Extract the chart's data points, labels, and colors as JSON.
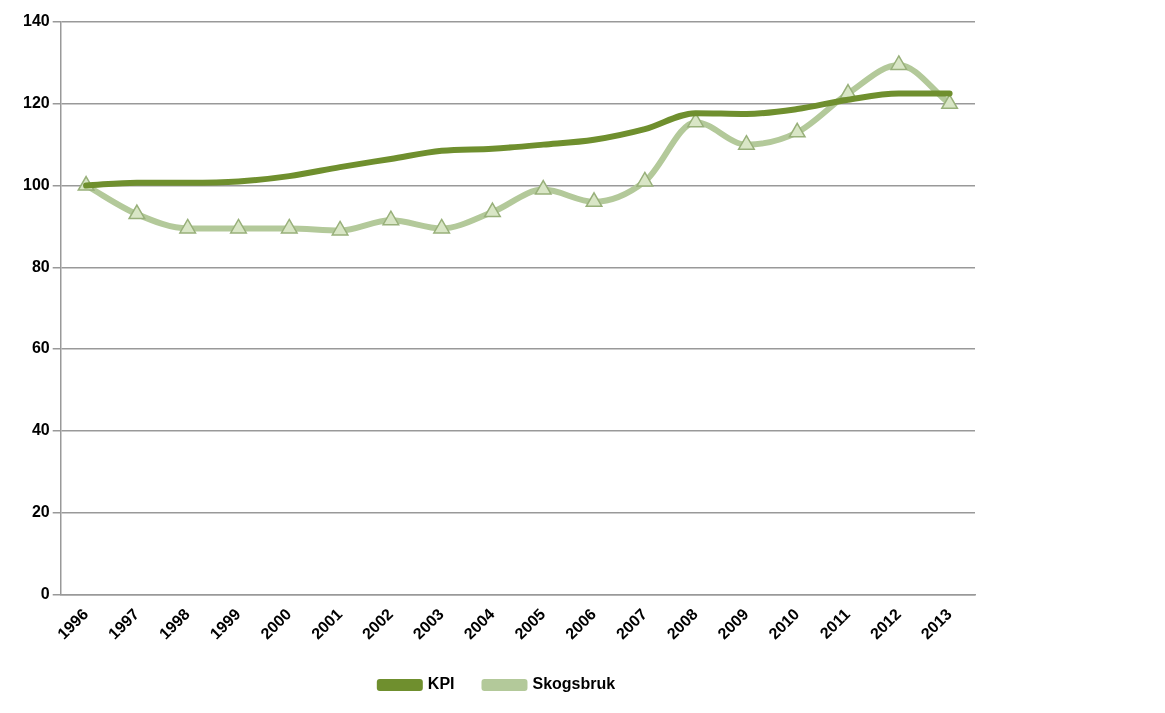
{
  "chart_data": {
    "type": "line",
    "categories": [
      "1996",
      "1997",
      "1998",
      "1999",
      "2000",
      "2001",
      "2002",
      "2003",
      "2004",
      "2005",
      "2006",
      "2007",
      "2008",
      "2009",
      "2010",
      "2011",
      "2012",
      "2013"
    ],
    "series": [
      {
        "name": "Skogsbruk",
        "color": "#b3c99a",
        "marker": "triangle",
        "values": [
          100,
          93,
          89.5,
          89.5,
          89.5,
          89,
          91.5,
          89.5,
          93.5,
          99,
          96,
          101,
          115.5,
          110,
          113,
          122.5,
          129.5,
          120
        ]
      },
      {
        "name": "KPI",
        "color": "#6f8f2e",
        "marker": "none",
        "values": [
          100,
          100.7,
          100.7,
          101,
          102.3,
          104.5,
          106.5,
          108.5,
          109,
          110,
          111.2,
          113.8,
          117.7,
          117.5,
          118.7,
          121,
          122.5,
          122.5
        ]
      }
    ],
    "ylim": [
      0,
      140
    ],
    "yticks": [
      0,
      20,
      40,
      60,
      80,
      100,
      120,
      140
    ],
    "grid": "y",
    "legend": "bottom",
    "line_style": "solid"
  }
}
